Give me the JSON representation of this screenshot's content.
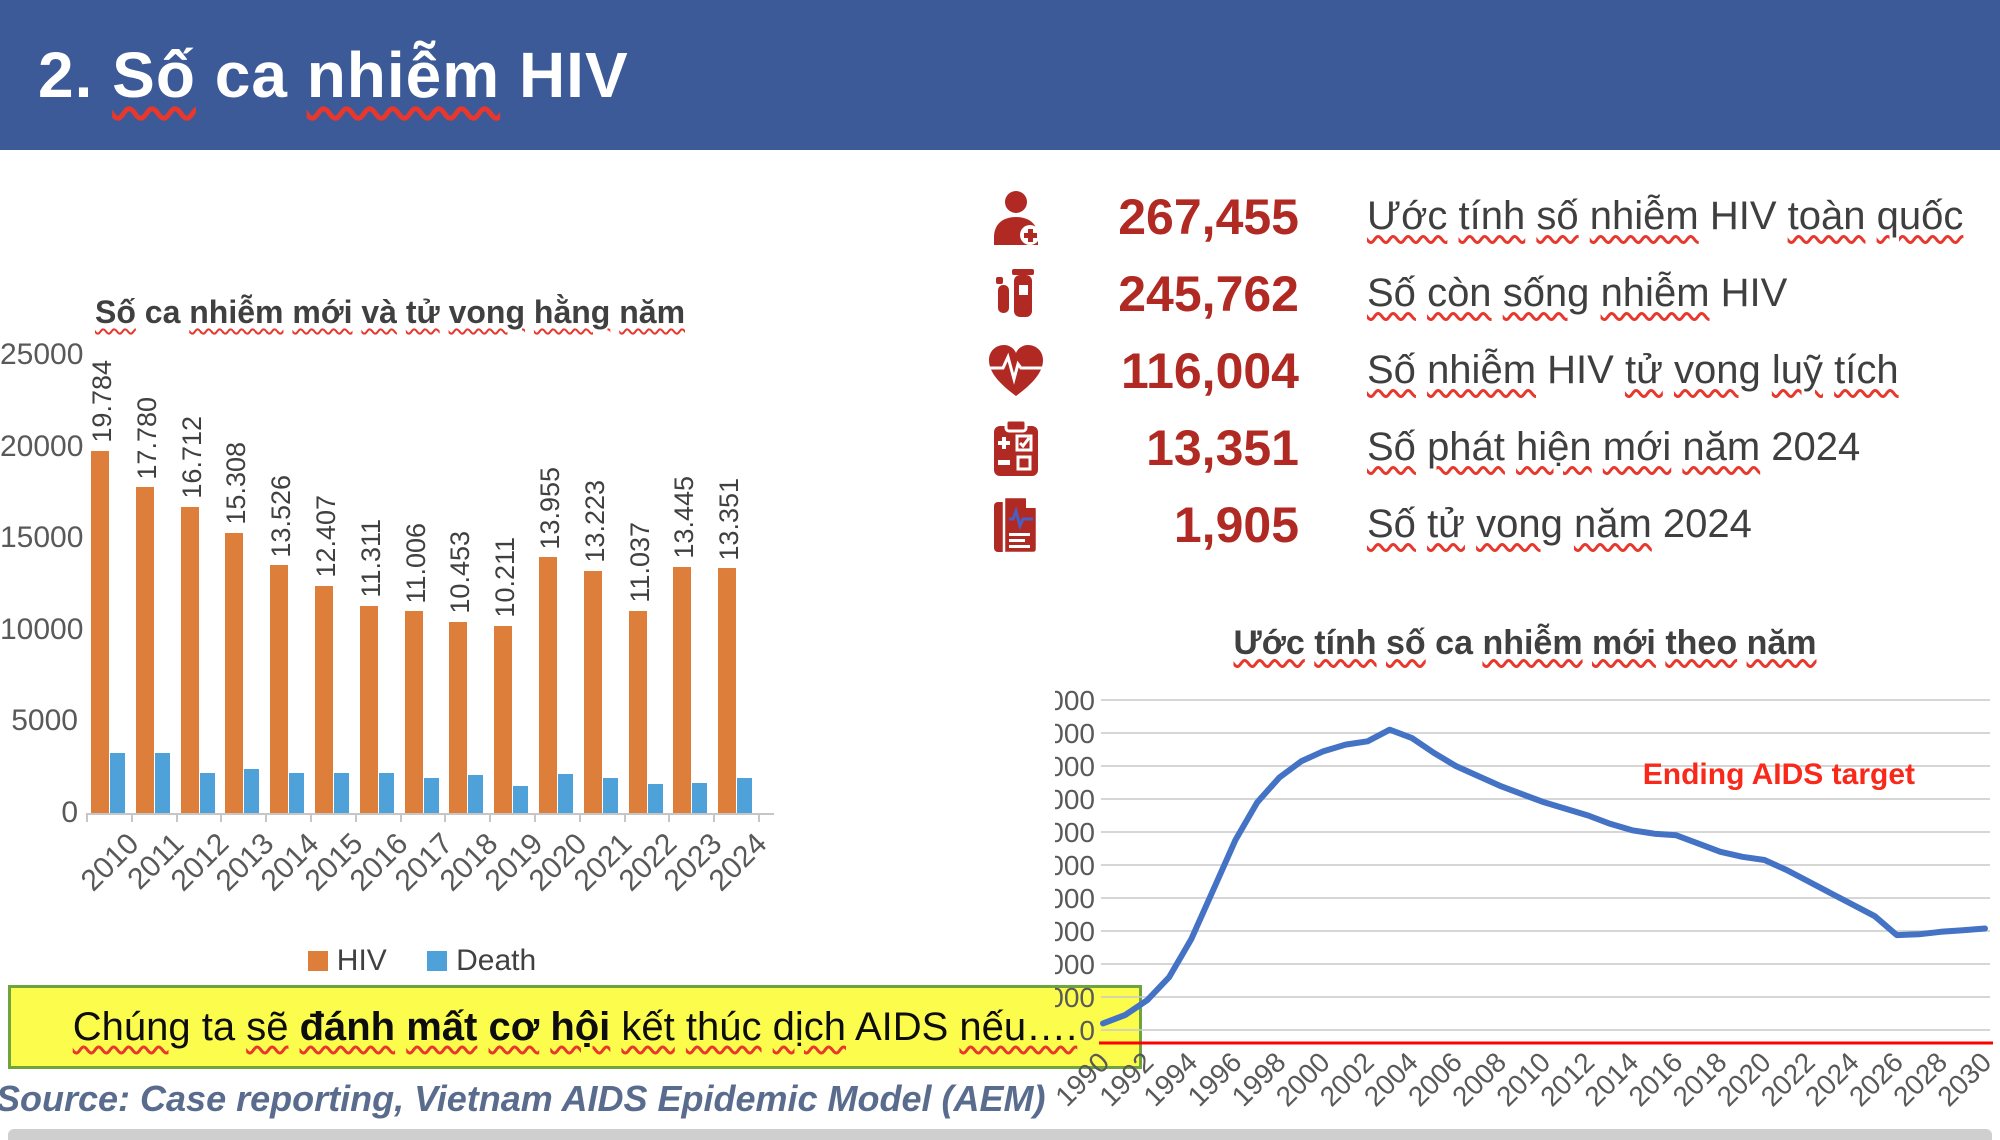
{
  "header": {
    "title": "2. Số ca nhiễm HIV"
  },
  "stats": {
    "rows": [
      {
        "icon": "medic-person-icon",
        "value": "267,455",
        "label": "Ước tính số nhiễm HIV toàn quốc"
      },
      {
        "icon": "test-tube-icon",
        "value": "245,762",
        "label": "Số còn sống nhiễm HIV"
      },
      {
        "icon": "heart-pulse-icon",
        "value": "116,004",
        "label": "Số nhiễm HIV tử vong luỹ tích"
      },
      {
        "icon": "clipboard-icon",
        "value": "13,351",
        "label": "Số phát hiện mới năm 2024"
      },
      {
        "icon": "medical-report-icon",
        "value": "1,905",
        "label": "Số tử vong năm 2024"
      }
    ]
  },
  "banner": {
    "prefix": "Chúng ta sẽ ",
    "bold": "đánh mất cơ hội",
    "suffix": " kết thúc dịch AIDS nếu…."
  },
  "source": "Source: Case reporting, Vietnam AIDS Epidemic Model (AEM)",
  "colors": {
    "header_bg": "#3D5A98",
    "stat_red": "#B02A23",
    "hiv_orange": "#DD7E3B",
    "death_blue": "#4FA2D9",
    "line_blue": "#4472C4",
    "target_red": "#FF0000",
    "banner_yellow": "#FCFC4C",
    "banner_border": "#6FA33C"
  },
  "chart_data": [
    {
      "type": "bar",
      "title": "Số ca nhiễm mới và tử vong hằng năm",
      "categories": [
        "2010",
        "2011",
        "2012",
        "2013",
        "2014",
        "2015",
        "2016",
        "2017",
        "2018",
        "2019",
        "2020",
        "2021",
        "2022",
        "2023",
        "2024"
      ],
      "series": [
        {
          "name": "HIV",
          "color": "#DD7E3B",
          "values": [
            19784,
            17780,
            16712,
            15308,
            13526,
            12407,
            11311,
            11006,
            10453,
            10211,
            13955,
            13223,
            11037,
            13445,
            13351
          ],
          "labels": [
            "19.784",
            "17.780",
            "16.712",
            "15.308",
            "13.526",
            "12.407",
            "11.311",
            "11.006",
            "10.453",
            "10.211",
            "13.955",
            "13.223",
            "11.037",
            "13.445",
            "13.351"
          ]
        },
        {
          "name": "Death",
          "color": "#4FA2D9",
          "values": [
            3300,
            3250,
            2200,
            2400,
            2200,
            2200,
            2200,
            1900,
            2050,
            1450,
            2150,
            1900,
            1600,
            1650,
            1905
          ]
        }
      ],
      "ylim": [
        0,
        25000
      ],
      "ytick_step": 5000,
      "grid": false,
      "legend_position": "bottom"
    },
    {
      "type": "line",
      "title": "Ước tính số ca nhiễm mới theo năm",
      "x": [
        1990,
        1991,
        1992,
        1993,
        1994,
        1995,
        1996,
        1997,
        1998,
        1999,
        2000,
        2001,
        2002,
        2003,
        2004,
        2005,
        2006,
        2007,
        2008,
        2009,
        2010,
        2011,
        2012,
        2013,
        2014,
        2015,
        2016,
        2017,
        2018,
        2019,
        2020,
        2021,
        2022,
        2023,
        2024,
        2025,
        2026,
        2027,
        2028,
        2029,
        2030
      ],
      "values": [
        400,
        900,
        1800,
        3200,
        5500,
        8500,
        11500,
        13800,
        15300,
        16300,
        16900,
        17300,
        17500,
        18200,
        17700,
        16800,
        16000,
        15400,
        14800,
        14300,
        13800,
        13400,
        13000,
        12500,
        12100,
        11900,
        11800,
        11300,
        10800,
        10500,
        10300,
        9700,
        9000,
        8300,
        7600,
        6900,
        5750,
        5800,
        5950,
        6050,
        6150
      ],
      "line_color": "#4472C4",
      "ylim": [
        0,
        20000
      ],
      "ytick_step": 2000,
      "xtick_step": 2,
      "grid": true,
      "annotation": {
        "text": "Ending AIDS target",
        "color": "#F8281A"
      },
      "target_line": {
        "color": "#FF0000",
        "position": "just below zero baseline"
      }
    }
  ]
}
